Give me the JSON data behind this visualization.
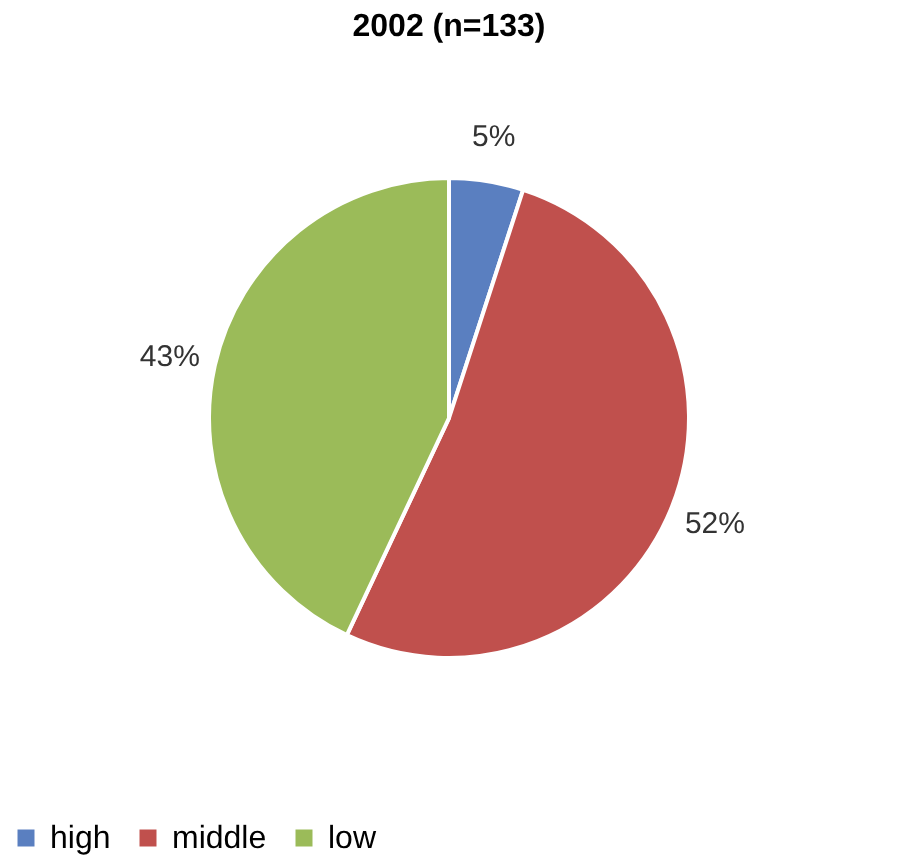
{
  "chart_data": {
    "type": "pie",
    "title": "2002 (n=133)",
    "categories": [
      "high",
      "middle",
      "low"
    ],
    "values": [
      5,
      52,
      43
    ],
    "colors": [
      "#5a7fc0",
      "#c0504d",
      "#9bbb59"
    ],
    "value_labels": [
      "5%",
      "52%",
      "43%"
    ],
    "legend": "bottom"
  }
}
